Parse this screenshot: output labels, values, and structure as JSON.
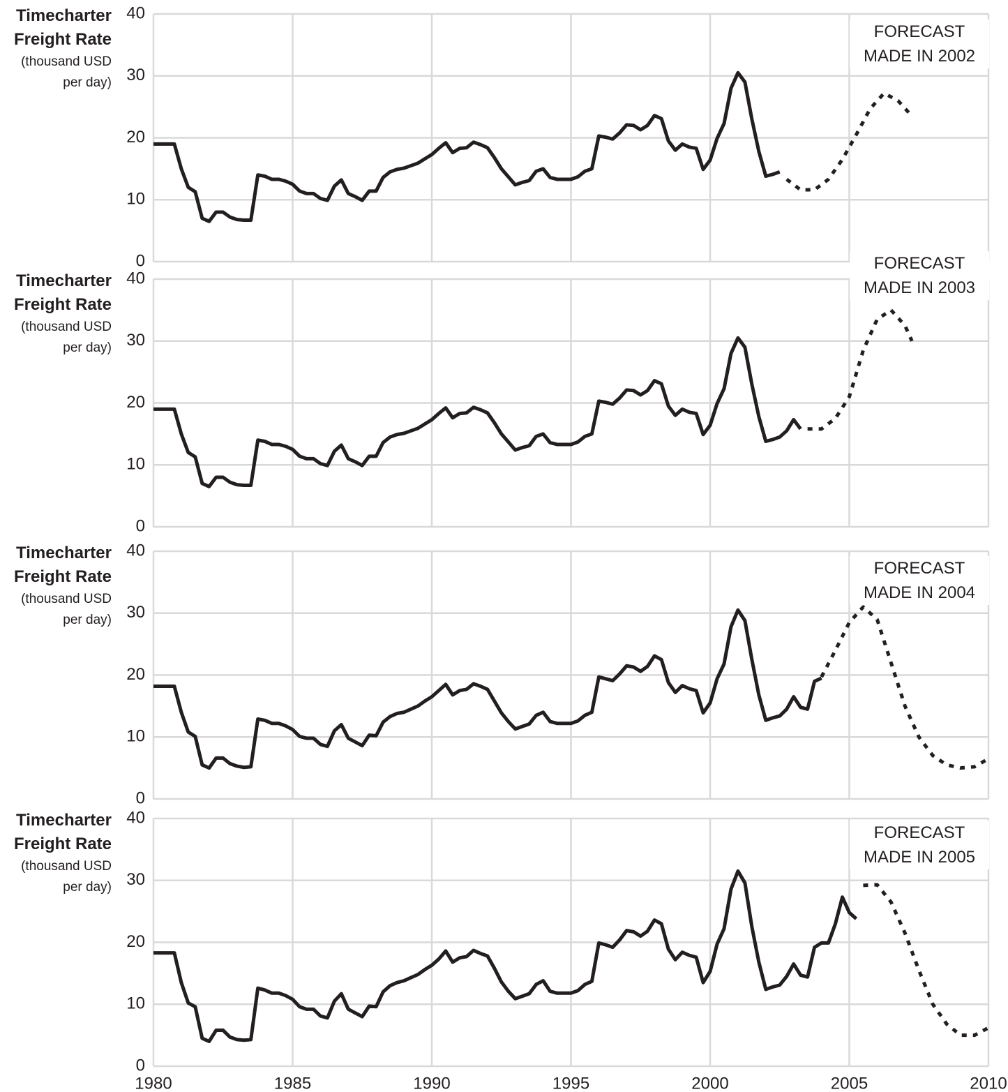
{
  "chart_data": [
    {
      "type": "line",
      "y_label": "Timecharter Freight Rate",
      "y_unit": "(thousand USD per day)",
      "annotation": "FORECAST MADE IN 2002",
      "xlim": [
        1980,
        2010
      ],
      "xticks": [
        1980,
        1985,
        1990,
        1995,
        2000,
        2005,
        2010
      ],
      "ylim": [
        0,
        40
      ],
      "yticks": [
        0,
        10,
        20,
        30,
        40
      ],
      "grid": true,
      "series": [
        {
          "style": "solid",
          "color": "#231f20",
          "x": [
            1980,
            1980.75,
            1981,
            1981.25,
            1981.5,
            1981.75,
            1982,
            1982.25,
            1982.5,
            1982.75,
            1983,
            1983.25,
            1983.5,
            1983.75,
            1984,
            1984.25,
            1984.5,
            1984.75,
            1985,
            1985.25,
            1985.5,
            1985.75,
            1986,
            1986.25,
            1986.5,
            1986.75,
            1987,
            1987.25,
            1987.5,
            1987.75,
            1988,
            1988.25,
            1988.5,
            1988.75,
            1989,
            1989.25,
            1989.5,
            1989.75,
            1990,
            1990.25,
            1990.5,
            1990.75,
            1991,
            1991.25,
            1991.5,
            1991.75,
            1992,
            1992.25,
            1992.5,
            1992.75,
            1993,
            1993.25,
            1993.5,
            1993.75,
            1994,
            1994.25,
            1994.5,
            1994.75,
            1995,
            1995.25,
            1995.5,
            1995.75,
            1996,
            1996.25,
            1996.5,
            1996.75,
            1997,
            1997.25,
            1997.5,
            1997.75,
            1998,
            1998.25,
            1998.5,
            1998.75,
            1999,
            1999.25,
            1999.5,
            1999.75,
            2000,
            2000.25,
            2000.5,
            2000.75,
            2001,
            2001.25,
            2001.5,
            2001.75,
            2002,
            2002.25,
            2002.5
          ],
          "values": [
            19,
            19,
            15,
            12,
            11.3,
            7,
            6.5,
            8,
            8,
            7.2,
            6.8,
            6.7,
            6.7,
            14,
            13.8,
            13.3,
            13.3,
            13,
            12.5,
            11.4,
            11,
            11,
            10.2,
            9.9,
            12.2,
            13.2,
            11,
            10.5,
            9.9,
            11.4,
            11.4,
            13.6,
            14.5,
            14.9,
            15.1,
            15.5,
            15.9,
            16.6,
            17.3,
            18.3,
            19.2,
            17.6,
            18.3,
            18.4,
            19.3,
            18.9,
            18.4,
            16.8,
            15,
            13.7,
            12.4,
            12.8,
            13.1,
            14.6,
            15,
            13.6,
            13.3,
            13.3,
            13.3,
            13.7,
            14.6,
            15,
            20.3,
            20.1,
            19.8,
            20.8,
            22.1,
            22,
            21.3,
            22,
            23.6,
            23.1,
            19.5,
            18,
            19,
            18.5,
            18.3,
            14.9,
            16.4,
            19.9,
            22.3,
            28,
            30.5,
            29,
            23,
            17.8,
            13.8,
            14.1,
            14.5
          ]
        },
        {
          "style": "dotted",
          "color": "#231f20",
          "x": [
            2002.75,
            2003.25,
            2003.75,
            2004.25,
            2004.75,
            2005.25,
            2005.75,
            2006.25,
            2006.75,
            2007.25
          ],
          "values": [
            13.3,
            11.6,
            11.6,
            13.3,
            16.5,
            20.5,
            24.7,
            27.2,
            26,
            23.5
          ]
        }
      ]
    },
    {
      "type": "line",
      "y_label": "Timecharter Freight Rate",
      "y_unit": "(thousand USD per day)",
      "annotation": "FORECAST MADE IN 2003",
      "xlim": [
        1980,
        2010
      ],
      "xticks": [
        1980,
        1985,
        1990,
        1995,
        2000,
        2005,
        2010
      ],
      "ylim": [
        0,
        40
      ],
      "yticks": [
        0,
        10,
        20,
        30,
        40
      ],
      "grid": true,
      "series": [
        {
          "style": "solid",
          "color": "#231f20",
          "x": [
            1980,
            1980.75,
            1981,
            1981.25,
            1981.5,
            1981.75,
            1982,
            1982.25,
            1982.5,
            1982.75,
            1983,
            1983.25,
            1983.5,
            1983.75,
            1984,
            1984.25,
            1984.5,
            1984.75,
            1985,
            1985.25,
            1985.5,
            1985.75,
            1986,
            1986.25,
            1986.5,
            1986.75,
            1987,
            1987.25,
            1987.5,
            1987.75,
            1988,
            1988.25,
            1988.5,
            1988.75,
            1989,
            1989.25,
            1989.5,
            1989.75,
            1990,
            1990.25,
            1990.5,
            1990.75,
            1991,
            1991.25,
            1991.5,
            1991.75,
            1992,
            1992.25,
            1992.5,
            1992.75,
            1993,
            1993.25,
            1993.5,
            1993.75,
            1994,
            1994.25,
            1994.5,
            1994.75,
            1995,
            1995.25,
            1995.5,
            1995.75,
            1996,
            1996.25,
            1996.5,
            1996.75,
            1997,
            1997.25,
            1997.5,
            1997.75,
            1998,
            1998.25,
            1998.5,
            1998.75,
            1999,
            1999.25,
            1999.5,
            1999.75,
            2000,
            2000.25,
            2000.5,
            2000.75,
            2001,
            2001.25,
            2001.5,
            2001.75,
            2002,
            2002.25,
            2002.5,
            2002.75,
            2003,
            2003.25
          ],
          "values": [
            19,
            19,
            15,
            12,
            11.3,
            7,
            6.5,
            8,
            8,
            7.2,
            6.8,
            6.7,
            6.7,
            14,
            13.8,
            13.3,
            13.3,
            13,
            12.5,
            11.4,
            11,
            11,
            10.2,
            9.9,
            12.2,
            13.2,
            11,
            10.5,
            9.9,
            11.4,
            11.4,
            13.6,
            14.5,
            14.9,
            15.1,
            15.5,
            15.9,
            16.6,
            17.3,
            18.3,
            19.2,
            17.6,
            18.3,
            18.4,
            19.3,
            18.9,
            18.4,
            16.8,
            15,
            13.7,
            12.4,
            12.8,
            13.1,
            14.6,
            15,
            13.6,
            13.3,
            13.3,
            13.3,
            13.7,
            14.6,
            15,
            20.3,
            20.1,
            19.8,
            20.8,
            22.1,
            22,
            21.3,
            22,
            23.6,
            23.1,
            19.5,
            18,
            19,
            18.5,
            18.3,
            14.9,
            16.4,
            19.9,
            22.3,
            28,
            30.5,
            29,
            23,
            17.8,
            13.8,
            14.1,
            14.5,
            15.5,
            17.3,
            15.8
          ]
        },
        {
          "style": "dotted",
          "color": "#231f20",
          "x": [
            2003.5,
            2004,
            2004.5,
            2005,
            2005.5,
            2006,
            2006.5,
            2007,
            2007.25
          ],
          "values": [
            15.8,
            15.8,
            17.5,
            21,
            28.5,
            33.5,
            35,
            32.5,
            30
          ]
        }
      ]
    },
    {
      "type": "line",
      "y_label": "Timecharter Freight Rate",
      "y_unit": "(thousand USD per day)",
      "annotation": "FORECAST MADE IN 2004",
      "xlim": [
        1980,
        2010
      ],
      "xticks": [
        1980,
        1985,
        1990,
        1995,
        2000,
        2005,
        2010
      ],
      "ylim": [
        0,
        40
      ],
      "yticks": [
        0,
        10,
        20,
        30,
        40
      ],
      "grid": true,
      "series": [
        {
          "style": "solid",
          "color": "#231f20",
          "x": [
            1980,
            1980.75,
            1981,
            1981.25,
            1981.5,
            1981.75,
            1982,
            1982.25,
            1982.5,
            1982.75,
            1983,
            1983.25,
            1983.5,
            1983.75,
            1984,
            1984.25,
            1984.5,
            1984.75,
            1985,
            1985.25,
            1985.5,
            1985.75,
            1986,
            1986.25,
            1986.5,
            1986.75,
            1987,
            1987.25,
            1987.5,
            1987.75,
            1988,
            1988.25,
            1988.5,
            1988.75,
            1989,
            1989.25,
            1989.5,
            1989.75,
            1990,
            1990.25,
            1990.5,
            1990.75,
            1991,
            1991.25,
            1991.5,
            1991.75,
            1992,
            1992.25,
            1992.5,
            1992.75,
            1993,
            1993.25,
            1993.5,
            1993.75,
            1994,
            1994.25,
            1994.5,
            1994.75,
            1995,
            1995.25,
            1995.5,
            1995.75,
            1996,
            1996.25,
            1996.5,
            1996.75,
            1997,
            1997.25,
            1997.5,
            1997.75,
            1998,
            1998.25,
            1998.5,
            1998.75,
            1999,
            1999.25,
            1999.5,
            1999.75,
            2000,
            2000.25,
            2000.5,
            2000.75,
            2001,
            2001.25,
            2001.5,
            2001.75,
            2002,
            2002.25,
            2002.5,
            2002.75,
            2003,
            2003.25,
            2003.5,
            2003.75,
            2004
          ],
          "values": [
            18.2,
            18.2,
            14,
            10.8,
            10.1,
            5.5,
            5,
            6.6,
            6.6,
            5.7,
            5.3,
            5.1,
            5.2,
            12.9,
            12.7,
            12.2,
            12.2,
            11.8,
            11.2,
            10.1,
            9.8,
            9.8,
            8.8,
            8.5,
            11,
            12,
            9.8,
            9.2,
            8.6,
            10.3,
            10.2,
            12.4,
            13.3,
            13.8,
            14,
            14.5,
            15,
            15.8,
            16.5,
            17.5,
            18.5,
            16.8,
            17.5,
            17.7,
            18.6,
            18.2,
            17.7,
            15.8,
            13.9,
            12.5,
            11.3,
            11.7,
            12.1,
            13.5,
            14,
            12.5,
            12.2,
            12.2,
            12.2,
            12.6,
            13.5,
            14,
            19.7,
            19.4,
            19.1,
            20.2,
            21.5,
            21.3,
            20.6,
            21.4,
            23.1,
            22.5,
            18.8,
            17.2,
            18.3,
            17.8,
            17.5,
            13.9,
            15.5,
            19.4,
            21.8,
            27.8,
            30.5,
            28.8,
            22.5,
            16.8,
            12.7,
            13.1,
            13.4,
            14.5,
            16.5,
            14.8,
            14.5,
            19,
            19.5
          ]
        },
        {
          "style": "dotted",
          "color": "#231f20",
          "x": [
            2004,
            2004.5,
            2005,
            2005.5,
            2006,
            2006.5,
            2007,
            2007.5,
            2008,
            2008.5,
            2009,
            2009.5,
            2010
          ],
          "values": [
            19.7,
            24,
            28.5,
            31,
            29,
            22,
            15,
            10,
            7,
            5.5,
            5,
            5.2,
            6.5
          ]
        }
      ]
    },
    {
      "type": "line",
      "y_label": "Timecharter Freight Rate",
      "y_unit": "(thousand USD per day)",
      "annotation": "FORECAST MADE IN 2005",
      "xlim": [
        1980,
        2010
      ],
      "xticks": [
        1980,
        1985,
        1990,
        1995,
        2000,
        2005,
        2010
      ],
      "ylim": [
        0,
        40
      ],
      "yticks": [
        0,
        10,
        20,
        30,
        40
      ],
      "grid": true,
      "series": [
        {
          "style": "solid",
          "color": "#231f20",
          "x": [
            1980,
            1980.75,
            1981,
            1981.25,
            1981.5,
            1981.75,
            1982,
            1982.25,
            1982.5,
            1982.75,
            1983,
            1983.25,
            1983.5,
            1983.75,
            1984,
            1984.25,
            1984.5,
            1984.75,
            1985,
            1985.25,
            1985.5,
            1985.75,
            1986,
            1986.25,
            1986.5,
            1986.75,
            1987,
            1987.25,
            1987.5,
            1987.75,
            1988,
            1988.25,
            1988.5,
            1988.75,
            1989,
            1989.25,
            1989.5,
            1989.75,
            1990,
            1990.25,
            1990.5,
            1990.75,
            1991,
            1991.25,
            1991.5,
            1991.75,
            1992,
            1992.25,
            1992.5,
            1992.75,
            1993,
            1993.25,
            1993.5,
            1993.75,
            1994,
            1994.25,
            1994.5,
            1994.75,
            1995,
            1995.25,
            1995.5,
            1995.75,
            1996,
            1996.25,
            1996.5,
            1996.75,
            1997,
            1997.25,
            1997.5,
            1997.75,
            1998,
            1998.25,
            1998.5,
            1998.75,
            1999,
            1999.25,
            1999.5,
            1999.75,
            2000,
            2000.25,
            2000.5,
            2000.75,
            2001,
            2001.25,
            2001.5,
            2001.75,
            2002,
            2002.25,
            2002.5,
            2002.75,
            2003,
            2003.25,
            2003.5,
            2003.75,
            2004,
            2004.25,
            2004.5,
            2004.75,
            2005,
            2005.25
          ],
          "values": [
            18.3,
            18.3,
            13.5,
            10.2,
            9.6,
            4.5,
            4,
            5.8,
            5.8,
            4.7,
            4.3,
            4.2,
            4.3,
            12.6,
            12.3,
            11.8,
            11.8,
            11.4,
            10.8,
            9.6,
            9.2,
            9.2,
            8.1,
            7.8,
            10.5,
            11.7,
            9.2,
            8.6,
            8,
            9.7,
            9.6,
            12,
            13,
            13.5,
            13.8,
            14.3,
            14.8,
            15.6,
            16.3,
            17.3,
            18.6,
            16.8,
            17.5,
            17.7,
            18.7,
            18.2,
            17.8,
            15.8,
            13.6,
            12.1,
            10.9,
            11.3,
            11.7,
            13.2,
            13.8,
            12.1,
            11.8,
            11.8,
            11.8,
            12.2,
            13.2,
            13.7,
            19.9,
            19.6,
            19.2,
            20.4,
            21.9,
            21.7,
            21,
            21.8,
            23.6,
            23,
            18.9,
            17.2,
            18.4,
            17.9,
            17.6,
            13.5,
            15.3,
            19.7,
            22.2,
            28.6,
            31.5,
            29.6,
            22.5,
            16.8,
            12.4,
            12.8,
            13.1,
            14.5,
            16.5,
            14.7,
            14.4,
            19.2,
            19.9,
            19.9,
            23,
            27.3,
            24.8,
            23.8
          ]
        },
        {
          "style": "dotted",
          "color": "#231f20",
          "x": [
            2005.5,
            2006,
            2006.5,
            2007,
            2007.5,
            2008,
            2008.5,
            2009,
            2009.5,
            2010
          ],
          "values": [
            29.2,
            29.3,
            26.5,
            21.5,
            15.5,
            10,
            6.8,
            5,
            5,
            6.2
          ]
        }
      ]
    }
  ]
}
